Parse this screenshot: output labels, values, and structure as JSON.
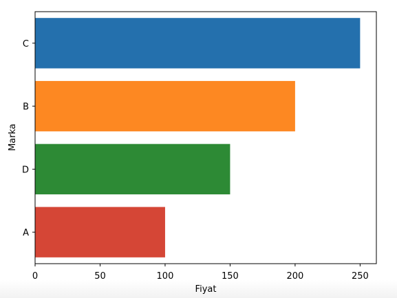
{
  "chart_data": {
    "type": "bar",
    "orientation": "horizontal",
    "categories": [
      "C",
      "B",
      "D",
      "A"
    ],
    "values": [
      250,
      200,
      150,
      100
    ],
    "colors": [
      "#2470ad",
      "#fd8822",
      "#2d8a35",
      "#d54636"
    ],
    "xlabel": "Fiyat",
    "ylabel": "Marka",
    "xlim": [
      0,
      262.5
    ],
    "xticks": [
      0,
      50,
      100,
      150,
      200,
      250
    ],
    "grid": false
  }
}
